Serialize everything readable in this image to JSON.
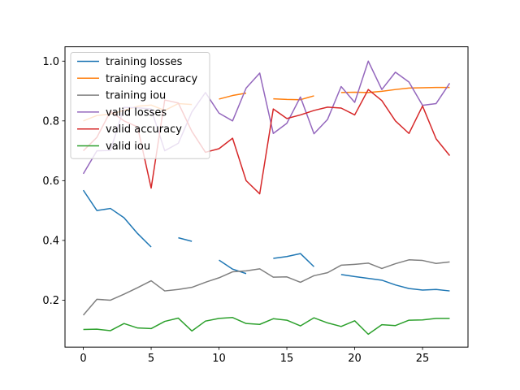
{
  "chart_data": {
    "type": "line",
    "title": "",
    "xlabel": "",
    "ylabel": "",
    "xlim": [
      -1.35,
      28.35
    ],
    "ylim": [
      0.043,
      1.048
    ],
    "xticks": [
      0,
      5,
      10,
      15,
      20,
      25
    ],
    "yticks": [
      0.2,
      0.4,
      0.6,
      0.8,
      1.0
    ],
    "xtick_labels": [
      "0",
      "5",
      "10",
      "15",
      "20",
      "25"
    ],
    "ytick_labels": [
      "0.2",
      "0.4",
      "0.6",
      "0.8",
      "1.0"
    ],
    "grid": false,
    "legend_position": "upper-left",
    "x": [
      0,
      1,
      2,
      3,
      4,
      5,
      6,
      7,
      8,
      9,
      10,
      11,
      12,
      13,
      14,
      15,
      16,
      17,
      18,
      19,
      20,
      21,
      22,
      23,
      24,
      25,
      26,
      27
    ],
    "series": [
      {
        "name": "training losses",
        "color": "#1f77b4",
        "values": [
          0.568,
          0.5,
          0.507,
          0.476,
          0.423,
          0.378,
          null,
          0.409,
          0.397,
          null,
          0.334,
          0.304,
          0.289,
          null,
          0.34,
          0.346,
          0.356,
          0.312,
          null,
          0.286,
          0.279,
          0.273,
          0.267,
          0.251,
          0.239,
          0.234,
          0.236,
          0.231
        ]
      },
      {
        "name": "training accuracy",
        "color": "#ff7f0e",
        "values": [
          0.8,
          0.818,
          0.823,
          0.835,
          0.849,
          0.853,
          0.835,
          0.858,
          0.855,
          null,
          0.873,
          0.885,
          0.893,
          null,
          0.874,
          0.872,
          0.871,
          0.884,
          null,
          0.895,
          0.896,
          0.895,
          0.899,
          0.905,
          0.91,
          0.911,
          0.912,
          0.912
        ]
      },
      {
        "name": "training iou",
        "color": "#7f7f7f",
        "values": [
          0.15,
          0.203,
          0.2,
          0.22,
          0.242,
          0.265,
          0.231,
          0.236,
          0.243,
          0.26,
          0.275,
          0.295,
          0.298,
          0.305,
          0.277,
          0.278,
          0.26,
          0.282,
          0.292,
          0.317,
          0.32,
          0.324,
          0.306,
          0.322,
          0.335,
          0.333,
          0.323,
          0.328
        ]
      },
      {
        "name": "valid losses",
        "color": "#9467bd",
        "values": [
          0.623,
          0.7,
          0.701,
          0.845,
          0.844,
          0.84,
          0.7,
          0.725,
          0.83,
          0.895,
          0.826,
          0.8,
          0.91,
          0.96,
          0.758,
          0.792,
          0.88,
          0.757,
          0.805,
          0.915,
          0.862,
          1.0,
          0.905,
          0.963,
          0.93,
          0.852,
          0.858,
          0.926
        ]
      },
      {
        "name": "valid accuracy",
        "color": "#d62728",
        "values": [
          0.7,
          0.745,
          0.832,
          0.8,
          0.78,
          0.575,
          0.87,
          0.86,
          0.765,
          0.695,
          0.707,
          0.742,
          0.6,
          0.556,
          0.84,
          0.808,
          0.82,
          0.835,
          0.846,
          0.843,
          0.82,
          0.905,
          0.868,
          0.8,
          0.758,
          0.85,
          0.74,
          0.684
        ]
      },
      {
        "name": "valid iou",
        "color": "#2ca02c",
        "values": [
          0.102,
          0.103,
          0.098,
          0.122,
          0.107,
          0.105,
          0.129,
          0.14,
          0.097,
          0.13,
          0.139,
          0.142,
          0.122,
          0.119,
          0.138,
          0.133,
          0.114,
          0.141,
          0.124,
          0.112,
          0.131,
          0.086,
          0.118,
          0.115,
          0.133,
          0.134,
          0.139,
          0.139
        ]
      }
    ]
  }
}
